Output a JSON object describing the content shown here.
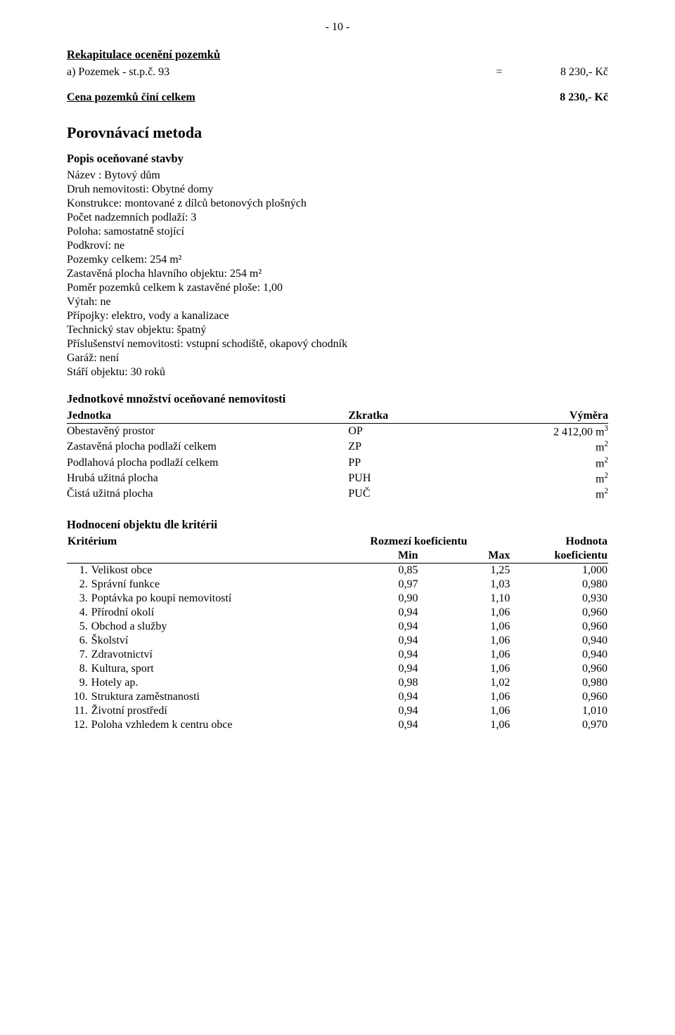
{
  "page_number": "- 10 -",
  "recap": {
    "title": "Rekapitulace ocenění pozemků",
    "item_a": {
      "label": "a) Pozemek - st.p.č. 93",
      "eq": "=",
      "value": "8 230,- Kč"
    },
    "total": {
      "label": "Cena pozemků činí celkem",
      "value": "8 230,- Kč"
    }
  },
  "method_title": "Porovnávací metoda",
  "desc": {
    "heading": "Popis oceňované stavby",
    "lines": [
      "Název : Bytový dům",
      "Druh nemovitosti: Obytné domy",
      "Konstrukce: montované z dílců betonových plošných",
      "Počet nadzemních podlaží: 3",
      "Poloha: samostatně stojící",
      "Podkroví: ne",
      "Pozemky celkem: 254 m²",
      "Zastavěná plocha hlavního objektu: 254 m²",
      "Poměr pozemků celkem k zastavěné ploše: 1,00",
      "Výtah: ne",
      "Přípojky: elektro, vody a kanalizace",
      "Technický stav objektu: špatný",
      "Příslušenství nemovitosti: vstupní schodiště, okapový chodník",
      "Garáž: není",
      "Stáří objektu: 30 roků"
    ]
  },
  "units": {
    "heading": "Jednotkové množství oceňované nemovitosti",
    "columns": [
      "Jednotka",
      "Zkratka",
      "Výměra"
    ],
    "rows": [
      {
        "name": "Obestavěný prostor",
        "abbr": "OP",
        "value": "2 412,00 m",
        "sup": "3"
      },
      {
        "name": "Zastavěná plocha podlaží celkem",
        "abbr": "ZP",
        "value": "m",
        "sup": "2"
      },
      {
        "name": "Podlahová plocha podlaží celkem",
        "abbr": "PP",
        "value": "m",
        "sup": "2"
      },
      {
        "name": "Hrubá užitná plocha",
        "abbr": "PUH",
        "value": "m",
        "sup": "2"
      },
      {
        "name": "Čistá užitná plocha",
        "abbr": "PUČ",
        "value": "m",
        "sup": "2"
      }
    ]
  },
  "criteria": {
    "heading": "Hodnocení objektu dle kritérii",
    "header": {
      "criterion": "Kritérium",
      "range": "Rozmezí koeficientu",
      "value": "Hodnota",
      "min": "Min",
      "max": "Max",
      "coef": "koeficientu"
    },
    "rows": [
      {
        "n": " 1.",
        "name": "Velikost obce",
        "min": "0,85",
        "max": "1,25",
        "val": "1,000"
      },
      {
        "n": " 2.",
        "name": "Správní funkce",
        "min": "0,97",
        "max": "1,03",
        "val": "0,980"
      },
      {
        "n": " 3.",
        "name": "Poptávka po koupi nemovitostí",
        "min": "0,90",
        "max": "1,10",
        "val": "0,930"
      },
      {
        "n": " 4.",
        "name": "Přírodní okolí",
        "min": "0,94",
        "max": "1,06",
        "val": "0,960"
      },
      {
        "n": " 5.",
        "name": "Obchod a služby",
        "min": "0,94",
        "max": "1,06",
        "val": "0,960"
      },
      {
        "n": " 6.",
        "name": "Školství",
        "min": "0,94",
        "max": "1,06",
        "val": "0,940"
      },
      {
        "n": " 7.",
        "name": "Zdravotnictví",
        "min": "0,94",
        "max": "1,06",
        "val": "0,940"
      },
      {
        "n": " 8.",
        "name": "Kultura, sport",
        "min": "0,94",
        "max": "1,06",
        "val": "0,960"
      },
      {
        "n": " 9.",
        "name": "Hotely ap.",
        "min": "0,98",
        "max": "1,02",
        "val": "0,980"
      },
      {
        "n": "10.",
        "name": "Struktura zaměstnanosti",
        "min": "0,94",
        "max": "1,06",
        "val": "0,960"
      },
      {
        "n": "11.",
        "name": "Životní prostředí",
        "min": "0,94",
        "max": "1,06",
        "val": "1,010"
      },
      {
        "n": "12.",
        "name": "Poloha vzhledem k centru obce",
        "min": "0,94",
        "max": "1,06",
        "val": "0,970"
      }
    ]
  },
  "colors": {
    "text": "#000000",
    "background": "#ffffff",
    "rule": "#000000"
  },
  "typography": {
    "font_family": "Times New Roman",
    "body_pt": 12,
    "heading_pt": 16
  }
}
